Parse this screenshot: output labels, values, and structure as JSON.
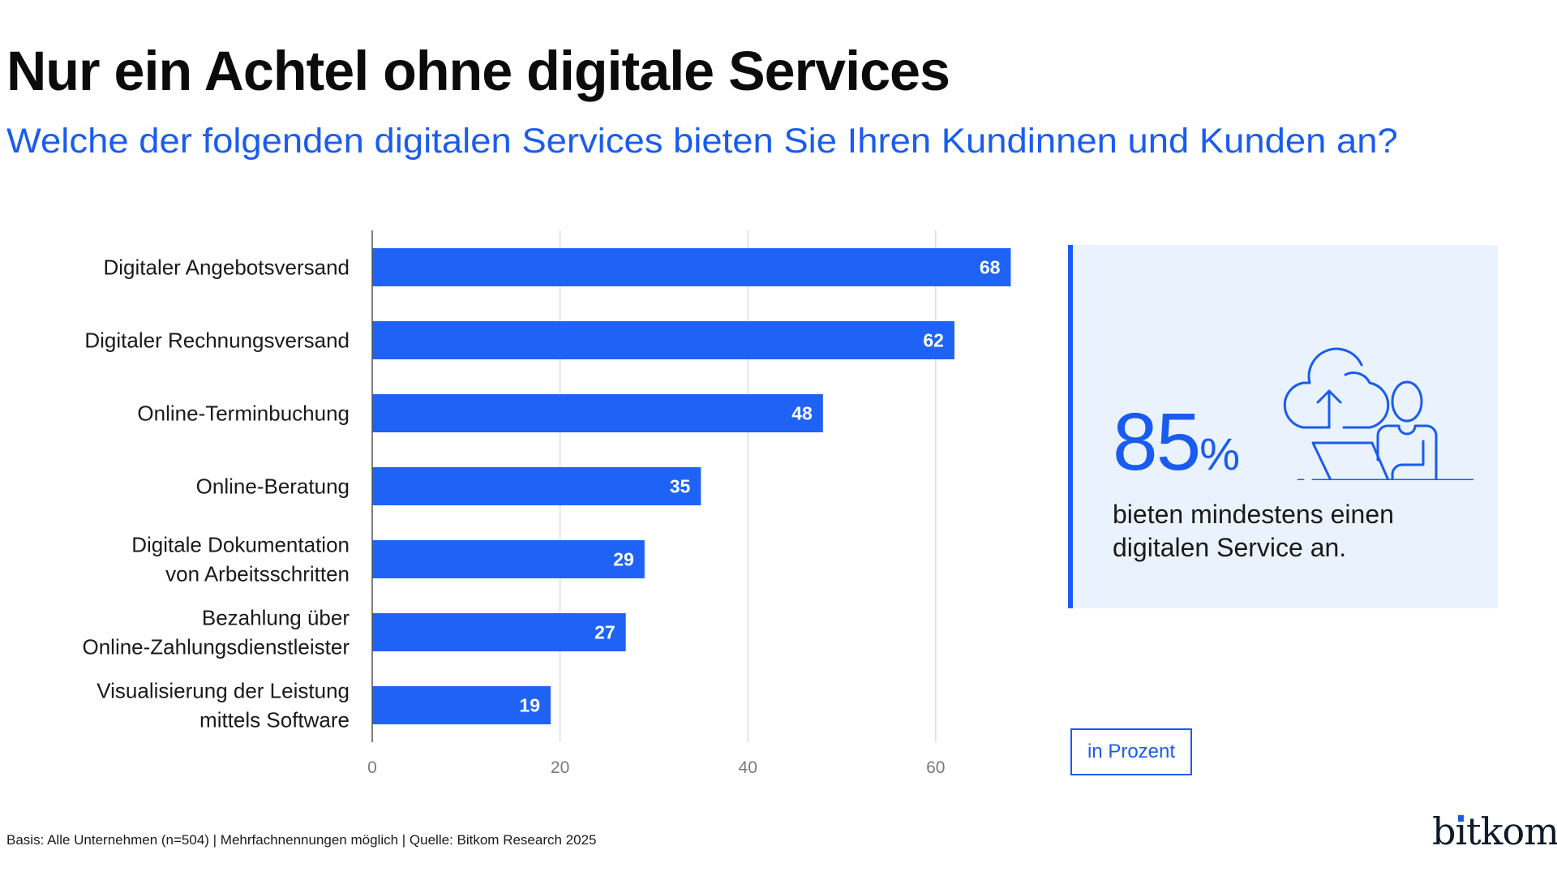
{
  "header": {
    "title": "Nur ein Achtel ohne digitale Services",
    "subtitle": "Welche der folgenden digitalen Services bieten Sie Ihren Kundinnen und Kunden an?"
  },
  "colors": {
    "accent": "#1a5cf0",
    "bar": "#1f62f6",
    "panel_bg": "#eaf3fd",
    "gridline": "#dcdcdc",
    "axis": "#555555",
    "tick_text": "#7a7a7a"
  },
  "chart_data": {
    "type": "bar",
    "orientation": "horizontal",
    "title": "Nur ein Achtel ohne digitale Services",
    "subtitle": "Welche der folgenden digitalen Services bieten Sie Ihren Kundinnen und Kunden an?",
    "categories": [
      [
        "Digitaler Angebotsversand"
      ],
      [
        "Digitaler Rechnungsversand"
      ],
      [
        "Online-Terminbuchung"
      ],
      [
        "Online-Beratung"
      ],
      [
        "Digitale Dokumentation",
        "von Arbeitsschritten"
      ],
      [
        "Bezahlung über",
        "Online-Zahlungsdienstleister"
      ],
      [
        "Visualisierung der Leistung",
        "mittels Software"
      ]
    ],
    "values": [
      68,
      62,
      48,
      35,
      29,
      27,
      19
    ],
    "xlabel": "",
    "ylabel": "",
    "unit": "in Prozent",
    "xlim": [
      0,
      68
    ],
    "xticks": [
      0,
      20,
      40,
      60
    ],
    "grid": true,
    "data_labels": true
  },
  "highlight": {
    "value": "85",
    "unit": "%",
    "text": "bieten mindestens einen digitalen Service an.",
    "icon": "cloud-upload-person-laptop-icon"
  },
  "unit_box": {
    "label": "in Prozent"
  },
  "footer": {
    "note": "Basis: Alle Unternehmen (n=504) | Mehrfachnennungen möglich | Quelle: Bitkom Research 2025",
    "logo_text": "bitkom"
  }
}
